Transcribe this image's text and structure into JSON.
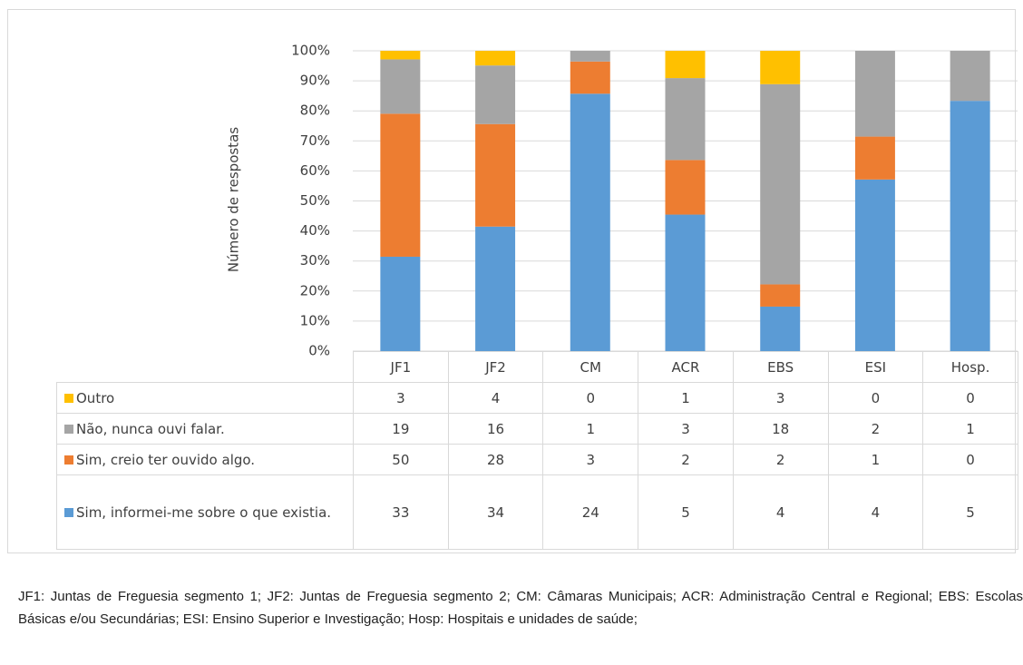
{
  "chart_data": {
    "type": "bar",
    "stacked": "percent",
    "y_label": "Número de respostas",
    "categories": [
      "JF1",
      "JF2",
      "CM",
      "ACR",
      "EBS",
      "ESI",
      "Hosp."
    ],
    "series": [
      {
        "name": "Sim, informei-me sobre o que existia.",
        "color": "#5b9bd5",
        "values": [
          33,
          34,
          24,
          5,
          4,
          4,
          5
        ]
      },
      {
        "name": "Sim, creio ter ouvido algo.",
        "color": "#ed7d31",
        "values": [
          50,
          28,
          3,
          2,
          2,
          1,
          0
        ]
      },
      {
        "name": "Não, nunca ouvi falar.",
        "color": "#a5a5a5",
        "values": [
          19,
          16,
          1,
          3,
          18,
          2,
          1
        ]
      },
      {
        "name": "Outro",
        "color": "#ffc000",
        "values": [
          3,
          4,
          0,
          1,
          3,
          0,
          0
        ]
      }
    ],
    "ylim": [
      0,
      100
    ],
    "yticks": [
      {
        "value": 0,
        "label": "0%"
      },
      {
        "value": 10,
        "label": "10%"
      },
      {
        "value": 20,
        "label": "20%"
      },
      {
        "value": 30,
        "label": "30%"
      },
      {
        "value": 40,
        "label": "40%"
      },
      {
        "value": 50,
        "label": "50%"
      },
      {
        "value": 60,
        "label": "60%"
      },
      {
        "value": 70,
        "label": "70%"
      },
      {
        "value": 80,
        "label": "80%"
      },
      {
        "value": 90,
        "label": "90%"
      },
      {
        "value": 100,
        "label": "100%"
      }
    ],
    "grid": true,
    "footnote": "JF1: Juntas de Freguesia segmento 1; JF2: Juntas de Freguesia segmento 2; CM: Câmaras Municipais; ACR: Administração Central e Regional; EBS: Escolas Básicas e/ou Secundárias; ESI: Ensino Superior e Investigação; Hosp: Hospitais e unidades de saúde;"
  }
}
